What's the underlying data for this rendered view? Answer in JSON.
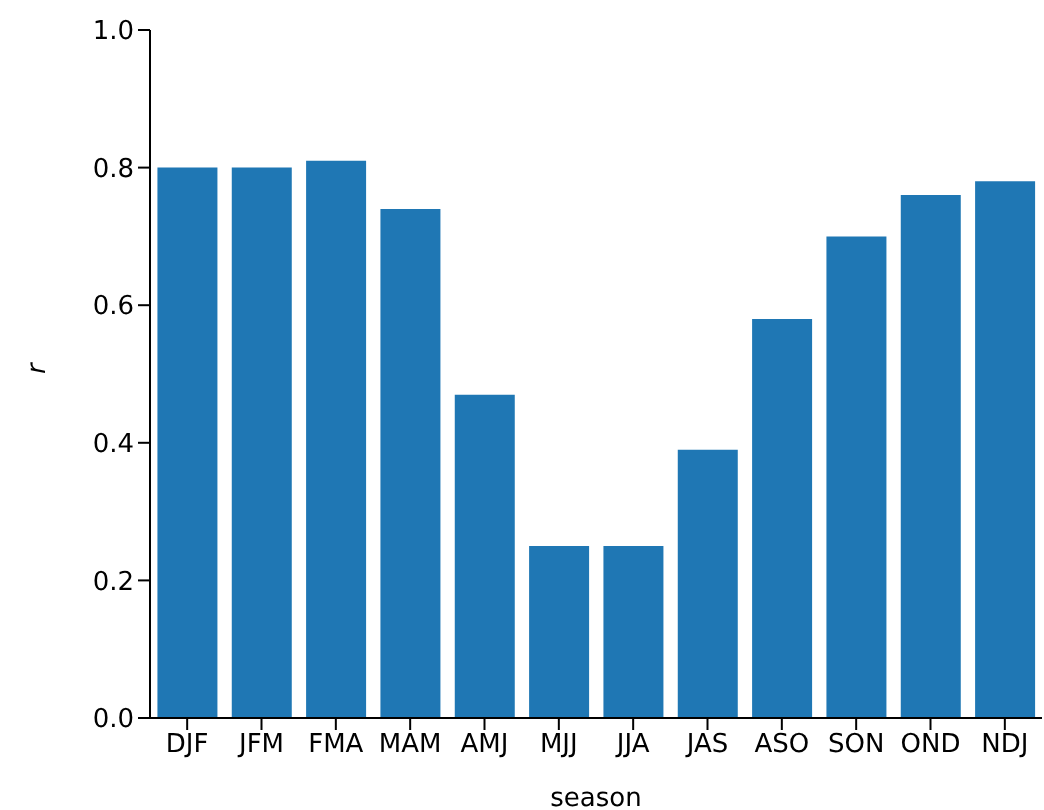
{
  "chart_data": {
    "type": "bar",
    "xlabel": "season",
    "ylabel": "r",
    "categories": [
      "DJF",
      "JFM",
      "FMA",
      "MAM",
      "AMJ",
      "MJJ",
      "JJA",
      "JAS",
      "ASO",
      "SON",
      "OND",
      "NDJ"
    ],
    "values": [
      0.8,
      0.8,
      0.81,
      0.74,
      0.47,
      0.25,
      0.25,
      0.39,
      0.58,
      0.7,
      0.76,
      0.78
    ],
    "color": "#1f77b4",
    "ylim": [
      0,
      1
    ],
    "yticks": [
      {
        "value": 0,
        "label": "0.0"
      },
      {
        "value": 0.2,
        "label": "0.2"
      },
      {
        "value": 0.4,
        "label": "0.4"
      },
      {
        "value": 0.6,
        "label": "0.6"
      },
      {
        "value": 0.8,
        "label": "0.8"
      },
      {
        "value": 1,
        "label": "1.0"
      }
    ],
    "grid": false
  }
}
